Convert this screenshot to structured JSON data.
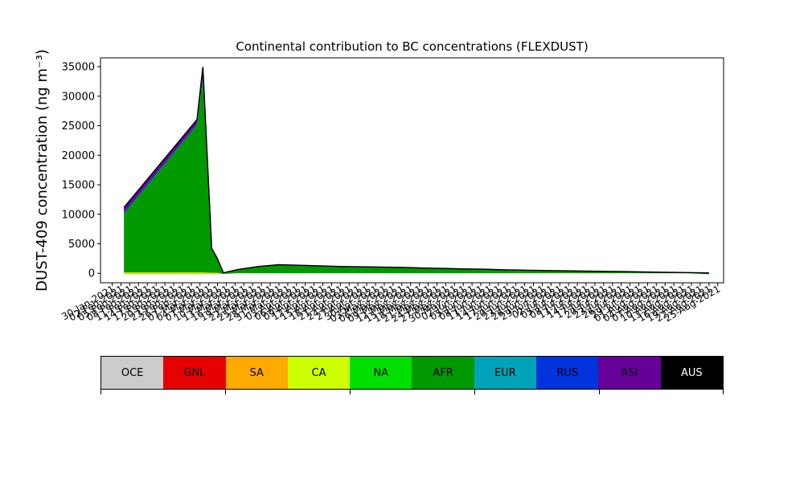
{
  "chart_data": {
    "type": "area",
    "title": "Continental contribution to BC concentrations (FLEXDUST)",
    "ylabel": "DUST-409 concentration (ng m⁻³)",
    "xlabel": "",
    "ylim": [
      -1600,
      36500
    ],
    "yticks": [
      0,
      5000,
      10000,
      15000,
      20000,
      25000,
      30000,
      35000
    ],
    "xlim": [
      "2021-01-26",
      "2021-08-27"
    ],
    "x_tick_step_days": 3,
    "x_tick_labels": [
      "30-Jan-2021",
      "02-Feb-2021",
      "05-Feb-2021",
      "08-Feb-2021",
      "11-Feb-2021",
      "14-Feb-2021",
      "17-Feb-2021",
      "20-Feb-2021",
      "23-Feb-2021",
      "26-Feb-2021",
      "01-Mar-2021",
      "04-Mar-2021",
      "07-Mar-2021",
      "10-Mar-2021",
      "13-Mar-2021",
      "16-Mar-2021",
      "19-Mar-2021",
      "22-Mar-2021",
      "25-Mar-2021",
      "28-Mar-2021",
      "31-Mar-2021",
      "03-Apr-2021",
      "06-Apr-2021",
      "09-Apr-2021",
      "12-Apr-2021",
      "15-Apr-2021",
      "18-Apr-2021",
      "21-Apr-2021",
      "24-Apr-2021",
      "27-Apr-2021",
      "30-Apr-2021",
      "03-May-2021",
      "06-May-2021",
      "09-May-2021",
      "12-May-2021",
      "15-May-2021",
      "18-May-2021",
      "21-May-2021",
      "24-May-2021",
      "27-May-2021",
      "30-May-2021",
      "02-Jun-2021",
      "05-Jun-2021",
      "08-Jun-2021",
      "11-Jun-2021",
      "14-Jun-2021",
      "17-Jun-2021",
      "20-Jun-2021",
      "23-Jun-2021",
      "26-Jun-2021",
      "29-Jun-2021",
      "02-Jul-2021",
      "05-Jul-2021",
      "08-Jul-2021",
      "11-Jul-2021",
      "14-Jul-2021",
      "17-Jul-2021",
      "20-Jul-2021",
      "23-Jul-2021",
      "26-Jul-2021",
      "29-Jul-2021",
      "01-Aug-2021",
      "04-Aug-2021",
      "07-Aug-2021",
      "10-Aug-2021",
      "13-Aug-2021",
      "16-Aug-2021",
      "19-Aug-2021",
      "22-Aug-2021",
      "25-Aug-2021"
    ],
    "x": [
      "2021-02-03",
      "2021-02-28",
      "2021-03-02",
      "2021-03-05",
      "2021-03-07",
      "2021-03-09",
      "2021-03-14",
      "2021-03-21",
      "2021-03-28",
      "2021-04-04",
      "2021-04-11",
      "2021-04-18",
      "2021-04-25",
      "2021-05-02",
      "2021-05-09",
      "2021-05-16",
      "2021-05-23",
      "2021-05-30",
      "2021-06-06",
      "2021-06-13",
      "2021-06-20",
      "2021-06-27",
      "2021-07-04",
      "2021-07-11",
      "2021-07-18",
      "2021-07-25",
      "2021-08-01",
      "2021-08-08",
      "2021-08-15",
      "2021-08-22"
    ],
    "series": [
      {
        "name": "OCE",
        "color": "#cccccc",
        "values": [
          0,
          0,
          0,
          0,
          0,
          0,
          0,
          0,
          0,
          0,
          0,
          0,
          0,
          0,
          0,
          0,
          0,
          0,
          0,
          0,
          0,
          0,
          0,
          0,
          0,
          0,
          0,
          0,
          0,
          0
        ]
      },
      {
        "name": "GNL",
        "color": "#e60000",
        "values": [
          0,
          0,
          0,
          0,
          0,
          0,
          0,
          0,
          0,
          0,
          0,
          0,
          0,
          0,
          0,
          0,
          0,
          0,
          0,
          0,
          0,
          0,
          0,
          0,
          0,
          0,
          0,
          0,
          0,
          0
        ]
      },
      {
        "name": "SA",
        "color": "#ffaa00",
        "values": [
          -150,
          -150,
          -150,
          -100,
          -100,
          -50,
          -30,
          -20,
          -10,
          -10,
          -10,
          -10,
          -10,
          -10,
          -10,
          -10,
          -10,
          -10,
          -10,
          -10,
          -10,
          -10,
          -10,
          -10,
          -10,
          -10,
          -10,
          -10,
          -10,
          -10
        ]
      },
      {
        "name": "CA",
        "color": "#ccff00",
        "values": [
          150,
          150,
          150,
          100,
          100,
          50,
          30,
          20,
          10,
          10,
          10,
          10,
          10,
          10,
          10,
          10,
          10,
          10,
          10,
          10,
          10,
          10,
          10,
          10,
          10,
          10,
          10,
          10,
          10,
          10
        ]
      },
      {
        "name": "NA",
        "color": "#00e000",
        "values": [
          0,
          0,
          0,
          0,
          0,
          0,
          0,
          0,
          0,
          0,
          0,
          0,
          0,
          0,
          0,
          0,
          0,
          0,
          0,
          0,
          0,
          0,
          0,
          0,
          0,
          0,
          0,
          0,
          0,
          0
        ]
      },
      {
        "name": "AFR",
        "color": "#009900",
        "values": [
          10000,
          25000,
          32800,
          4000,
          2200,
          -50,
          550,
          1050,
          1350,
          1250,
          1150,
          1050,
          1000,
          950,
          900,
          800,
          750,
          650,
          600,
          500,
          450,
          400,
          350,
          300,
          250,
          200,
          150,
          100,
          50,
          -150
        ]
      },
      {
        "name": "EUR",
        "color": "#00a3b8",
        "values": [
          0,
          0,
          0,
          0,
          0,
          0,
          0,
          0,
          0,
          0,
          0,
          0,
          0,
          0,
          0,
          0,
          0,
          0,
          0,
          0,
          0,
          0,
          0,
          0,
          0,
          0,
          0,
          0,
          0,
          0
        ]
      },
      {
        "name": "RUS",
        "color": "#0033dd",
        "values": [
          200,
          200,
          500,
          50,
          50,
          10,
          50,
          60,
          80,
          80,
          80,
          80,
          80,
          70,
          70,
          70,
          60,
          60,
          60,
          60,
          50,
          50,
          50,
          50,
          50,
          50,
          40,
          40,
          40,
          30
        ]
      },
      {
        "name": "ASI",
        "color": "#660099",
        "values": [
          800,
          700,
          1500,
          100,
          100,
          20,
          20,
          20,
          20,
          20,
          20,
          20,
          20,
          20,
          20,
          20,
          20,
          20,
          20,
          20,
          20,
          20,
          20,
          20,
          20,
          20,
          20,
          20,
          20,
          20
        ]
      },
      {
        "name": "AUS",
        "color": "#000000",
        "values": [
          0,
          0,
          0,
          0,
          0,
          0,
          0,
          0,
          0,
          0,
          0,
          0,
          0,
          0,
          0,
          0,
          0,
          0,
          0,
          0,
          0,
          0,
          0,
          0,
          0,
          0,
          0,
          0,
          0,
          0
        ]
      }
    ],
    "legend": {
      "placement": "below",
      "items": [
        {
          "name": "OCE",
          "color": "#cccccc"
        },
        {
          "name": "GNL",
          "color": "#e60000"
        },
        {
          "name": "SA",
          "color": "#ffaa00"
        },
        {
          "name": "CA",
          "color": "#ccff00"
        },
        {
          "name": "NA",
          "color": "#00e000"
        },
        {
          "name": "AFR",
          "color": "#009900"
        },
        {
          "name": "EUR",
          "color": "#00a3b8"
        },
        {
          "name": "RUS",
          "color": "#0033dd"
        },
        {
          "name": "ASI",
          "color": "#660099"
        },
        {
          "name": "AUS",
          "color": "#000000"
        }
      ]
    },
    "grid": false
  }
}
